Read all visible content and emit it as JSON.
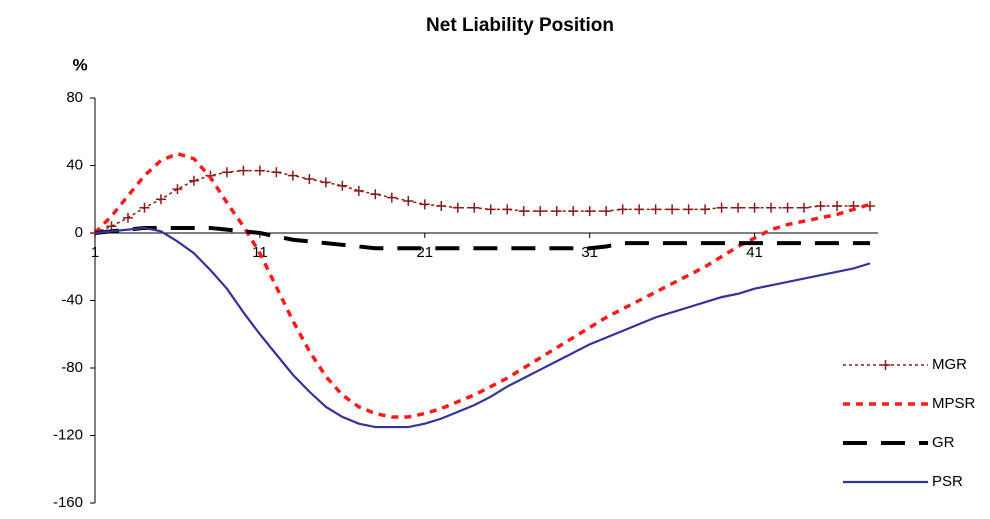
{
  "chart_data": {
    "type": "line",
    "title": "Net Liability Position",
    "y_label": "%",
    "x": [
      1,
      2,
      3,
      4,
      5,
      6,
      7,
      8,
      9,
      10,
      11,
      12,
      13,
      14,
      15,
      16,
      17,
      18,
      19,
      20,
      21,
      22,
      23,
      24,
      25,
      26,
      27,
      28,
      29,
      30,
      31,
      32,
      33,
      34,
      35,
      36,
      37,
      38,
      39,
      40,
      41,
      42,
      43,
      44,
      45,
      46,
      47,
      48
    ],
    "xlim": [
      1,
      48
    ],
    "xticks": [
      1,
      11,
      21,
      31,
      41
    ],
    "ylim": [
      -160,
      80
    ],
    "yticks": [
      80,
      40,
      0,
      -40,
      -80,
      -120,
      -160
    ],
    "grid": false,
    "legend": "right",
    "series": [
      {
        "name": "MGR",
        "color": "#8b1a1a",
        "line_style": "dotted",
        "marker": "plus",
        "values": [
          0,
          4,
          9,
          15,
          20,
          26,
          31,
          34,
          36,
          37,
          37,
          36,
          34,
          32,
          30,
          28,
          25,
          23,
          21,
          19,
          17,
          16,
          15,
          15,
          14,
          14,
          13,
          13,
          13,
          13,
          13,
          13,
          14,
          14,
          14,
          14,
          14,
          14,
          15,
          15,
          15,
          15,
          15,
          15,
          16,
          16,
          16,
          16
        ]
      },
      {
        "name": "MPSR",
        "color": "#ff1a1a",
        "line_style": "dashed",
        "marker": "none",
        "values": [
          0,
          10,
          22,
          34,
          43,
          47,
          44,
          33,
          18,
          4,
          -12,
          -32,
          -52,
          -70,
          -85,
          -96,
          -103,
          -107,
          -109,
          -109,
          -107,
          -104,
          -100,
          -96,
          -91,
          -86,
          -80,
          -74,
          -68,
          -62,
          -56,
          -50,
          -45,
          -40,
          -35,
          -30,
          -25,
          -20,
          -14,
          -8,
          -3,
          2,
          5,
          7,
          9,
          11,
          14,
          17
        ]
      },
      {
        "name": "GR",
        "color": "#000000",
        "line_style": "long-dash",
        "marker": "none",
        "values": [
          0,
          1,
          2,
          3,
          3,
          3,
          3,
          3,
          2,
          1,
          0,
          -2,
          -4,
          -5,
          -6,
          -7,
          -8,
          -9,
          -9,
          -9,
          -9,
          -9,
          -9,
          -9,
          -9,
          -9,
          -9,
          -9,
          -9,
          -9,
          -9,
          -8,
          -6,
          -6,
          -6,
          -6,
          -6,
          -6,
          -6,
          -6,
          -6,
          -6,
          -6,
          -6,
          -6,
          -6,
          -6,
          -6
        ]
      },
      {
        "name": "PSR",
        "color": "#333399",
        "line_style": "solid",
        "marker": "none",
        "values": [
          0,
          1,
          2,
          3,
          1,
          -5,
          -12,
          -22,
          -33,
          -47,
          -60,
          -72,
          -84,
          -94,
          -103,
          -109,
          -113,
          -115,
          -115,
          -115,
          -113,
          -110,
          -106,
          -102,
          -97,
          -91,
          -86,
          -81,
          -76,
          -71,
          -66,
          -62,
          -58,
          -54,
          -50,
          -47,
          -44,
          -41,
          -38,
          -36,
          -33,
          -31,
          -29,
          -27,
          -25,
          -23,
          -21,
          -18
        ]
      }
    ]
  }
}
